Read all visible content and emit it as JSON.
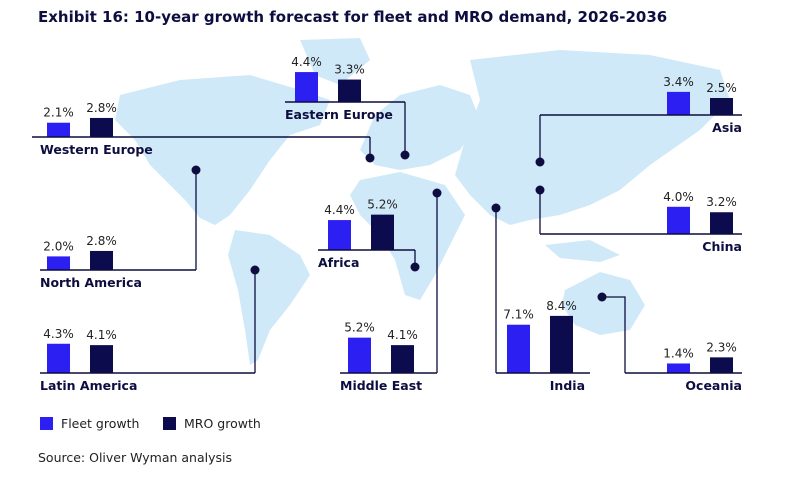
{
  "title": "Exhibit 16: 10-year growth forecast for fleet and MRO demand, 2026-2036",
  "source": "Source: Oliver Wyman analysis",
  "colors": {
    "fleet": "#2b1ff2",
    "mro": "#0b0b4d",
    "map": "#cfe9f9",
    "line": "#0d0d3f"
  },
  "chart_data": {
    "type": "bar",
    "title": "Exhibit 16: 10-year growth forecast for fleet and MRO demand, 2026-2036",
    "legend": [
      "Fleet growth",
      "MRO growth"
    ],
    "legend_position": "bottom-left",
    "unit": "%",
    "categories": [
      "Western Europe",
      "Eastern Europe",
      "Asia",
      "China",
      "North America",
      "Africa",
      "Latin America",
      "Middle East",
      "India",
      "Oceania"
    ],
    "series": [
      {
        "name": "Fleet growth",
        "values": [
          2.1,
          4.4,
          3.4,
          4.0,
          2.0,
          4.4,
          4.3,
          5.2,
          7.1,
          1.4
        ],
        "labels": [
          "2.1%",
          "4.4%",
          "3.4%",
          "4.0%",
          "2.0%",
          "4.4%",
          "4.3%",
          "5.2%",
          "7.1%",
          "1.4%"
        ]
      },
      {
        "name": "MRO growth",
        "values": [
          2.8,
          3.3,
          2.5,
          3.2,
          2.8,
          5.2,
          4.1,
          4.1,
          8.4,
          2.3
        ],
        "labels": [
          "2.8%",
          "3.3%",
          "2.5%",
          "3.2%",
          "2.8%",
          "5.2%",
          "4.1%",
          "4.1%",
          "8.4%",
          "2.3%"
        ]
      }
    ]
  }
}
